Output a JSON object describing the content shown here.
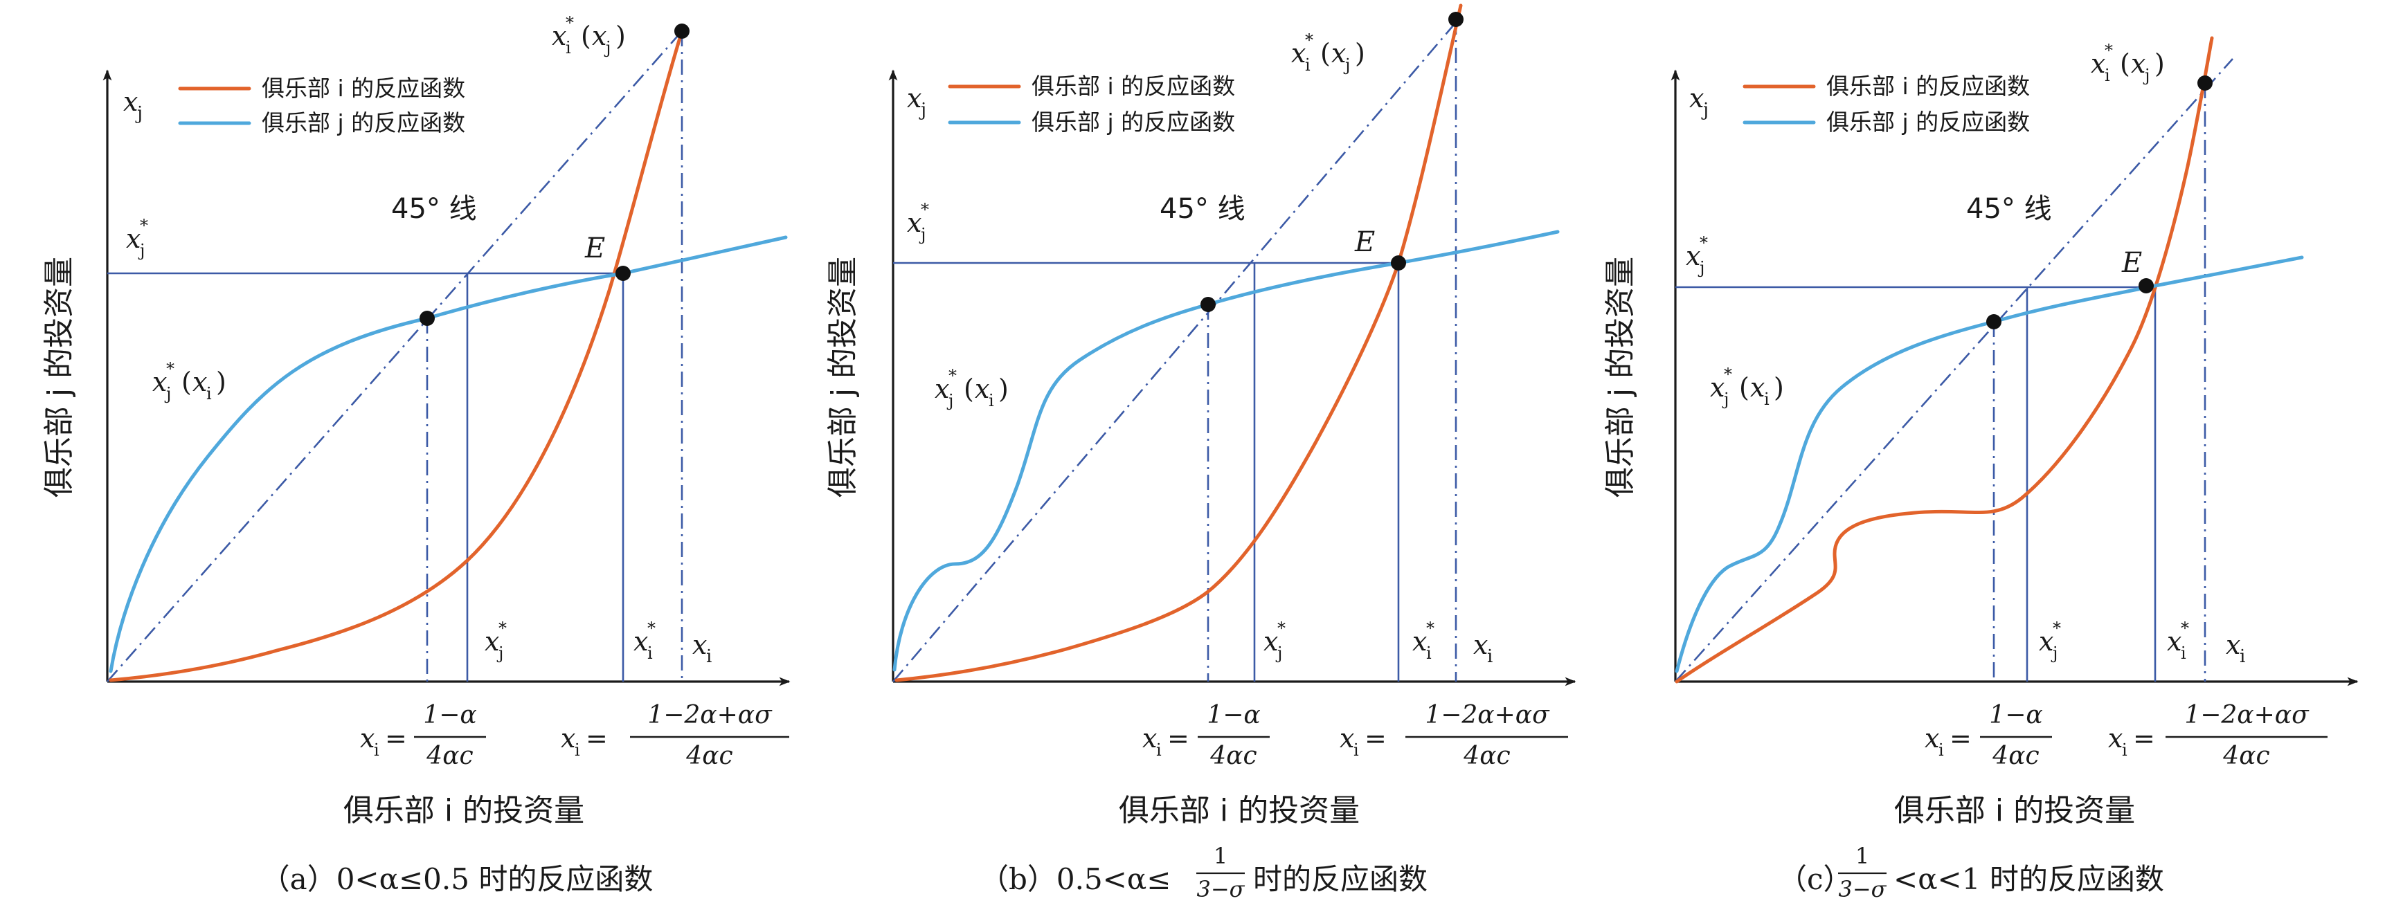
{
  "colors": {
    "club_i": "#e2632b",
    "club_j": "#4fa8dc",
    "guide": "#3c5aa6",
    "axis": "#1a1a1a"
  },
  "legend": {
    "club_i": "俱乐部 i 的反应函数",
    "club_j": "俱乐部 j 的反应函数"
  },
  "axes": {
    "x_title": "俱乐部 i 的投资量",
    "y_title": "俱乐部 j 的投资量",
    "x_var": "x",
    "x_sub": "i",
    "y_var": "x",
    "y_sub": "j"
  },
  "labels": {
    "line_45": "45° 线",
    "equilibrium": "E",
    "xj_star": "x",
    "star": "*",
    "sub_j": "j",
    "sub_i": "i",
    "curve_j": "x",
    "curve_i": "x",
    "paren_open": "(",
    "paren_close": ")"
  },
  "formulas": {
    "xi_eq": "x",
    "xi_eq_sub": "i",
    "equals": "=",
    "frac1_num": "1−α",
    "frac1_den": "4αc",
    "frac2_num": "1−2α+ασ",
    "frac2_den": "4αc"
  },
  "captions": {
    "a": "（a）0<α≤0.5 时的反应函数",
    "b_prefix": "（b）0.5<α≤",
    "b_frac_num": "1",
    "b_frac_den": "3−σ",
    "b_suffix": "时的反应函数",
    "c_prefix": "（c）",
    "c_frac_num": "1",
    "c_frac_den": "3−σ",
    "c_suffix": "<α<1 时的反应函数"
  },
  "panels": [
    {
      "id": "a",
      "condition": "0<α≤0.5"
    },
    {
      "id": "b",
      "condition": "0.5<α≤1/(3−σ)"
    },
    {
      "id": "c",
      "condition": "1/(3−σ)<α<1"
    }
  ]
}
